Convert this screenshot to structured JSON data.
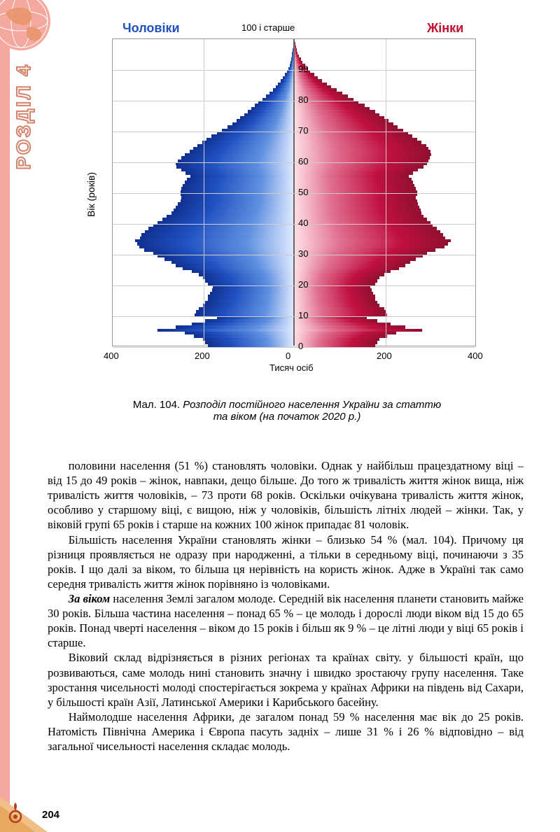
{
  "section_title": "РОЗДІЛ 4",
  "page_number": "204",
  "chart": {
    "type": "population-pyramid",
    "label_male": "Чоловіки",
    "label_female": "Жінки",
    "label_top": "100 і старше",
    "yaxis_label": "Вік (років)",
    "xaxis_label": "Тисяч осіб",
    "colors": {
      "male_gradient": [
        "#e0eaff",
        "#6090e0",
        "#2050c0",
        "#103090"
      ],
      "female_gradient": [
        "#ffe0e5",
        "#e07090",
        "#c01040",
        "#901030"
      ],
      "grid": "#cccccc",
      "border": "#999999"
    },
    "y_ticks": [
      0,
      10,
      20,
      30,
      40,
      50,
      60,
      70,
      80,
      90
    ],
    "x_ticks_left": [
      400,
      200,
      0
    ],
    "x_ticks_right": [
      0,
      200,
      400
    ],
    "xlim": 400,
    "male_values": [
      190,
      195,
      200,
      220,
      240,
      300,
      260,
      225,
      195,
      170,
      218,
      215,
      210,
      200,
      195,
      190,
      190,
      185,
      180,
      178,
      190,
      195,
      200,
      210,
      225,
      245,
      260,
      270,
      285,
      300,
      310,
      330,
      340,
      345,
      350,
      338,
      335,
      328,
      320,
      310,
      300,
      290,
      280,
      270,
      265,
      260,
      255,
      250,
      248,
      250,
      250,
      248,
      245,
      240,
      235,
      228,
      238,
      248,
      258,
      260,
      255,
      248,
      240,
      230,
      222,
      212,
      202,
      192,
      182,
      170,
      158,
      146,
      136,
      126,
      118,
      110,
      102,
      94,
      86,
      78,
      70,
      62,
      54,
      46,
      40,
      35,
      30,
      25,
      20,
      16,
      13,
      10,
      8,
      6,
      5,
      4,
      3,
      2,
      1,
      1
    ],
    "female_values": [
      178,
      183,
      188,
      205,
      225,
      282,
      245,
      212,
      183,
      160,
      205,
      202,
      198,
      188,
      183,
      178,
      178,
      174,
      170,
      168,
      178,
      183,
      188,
      198,
      212,
      230,
      245,
      255,
      268,
      283,
      293,
      311,
      330,
      338,
      345,
      332,
      328,
      322,
      314,
      305,
      300,
      292,
      285,
      280,
      278,
      275,
      273,
      270,
      268,
      270,
      270,
      268,
      265,
      262,
      258,
      252,
      262,
      272,
      285,
      292,
      295,
      298,
      302,
      300,
      295,
      290,
      280,
      270,
      260,
      250,
      240,
      228,
      218,
      208,
      198,
      188,
      178,
      166,
      155,
      142,
      130,
      118,
      106,
      94,
      82,
      72,
      62,
      52,
      44,
      36,
      30,
      24,
      19,
      15,
      11,
      8,
      6,
      4,
      3,
      2
    ]
  },
  "caption_line1": "Мал. 104. Розподіл постійного населення України за статтю",
  "caption_line2": "та віком (на початок 2020 р.)",
  "paragraphs": {
    "p1": "половини населення (51 %) становлять чоловіки. Однак у найбільш працездатному віці – від 15 до 49 років – жінок, навпаки, дещо більше. До того ж тривалість життя жінок вища, ніж тривалість життя чоловіків, – 73 проти 68 років. Оскільки очікувана тривалість життя жінок, особливо у старшому віці, є вищою, ніж у чоловіків, більшість літніх людей – жінки. Так, у віковій групі 65 років і старше на кожних 100 жінок припадає 81 чоловік.",
    "p2": "Більшість населення України становлять жінки – близько 54 % (мал. 104). Причому ця різниця проявляється не одразу при народженні, а тільки в середньому віці, починаючи з 35 років. І що далі за віком, то більша ця нерівність на користь жінок. Адже в Україні так само середня тривалість життя жінок порівняно із чоловіками.",
    "p3_prefix": "За віком",
    "p3_rest": " населення Землі загалом молоде. Середній вік населення планети становить майже 30 років. Більша частина населення – понад 65 % – це молодь і дорослі люди віком від 15 до 65 років. Понад чверті населення – віком до 15 років і більш як 9 % – це літні люди у віці 65 років і старше.",
    "p4": "Віковий склад відрізняється в різних регіонах та країнах світу. у більшості країн, що розвиваються, саме молодь нині становить значну і швидко зростаючу групу населення. Таке зростання чисельності молоді спостерігається зокрема у країнах Африки на південь від Сахари, у більшості країн Азії, Латинської Америки і Карибського басейну.",
    "p5": "Наймолодше населення Африки, де загалом понад 59 % населення має вік до 25 років. Натомість Північна Америка і Європа пасуть задніх – лише 31 % і 26 % відповідно – від загальної чисельності населення складає молодь."
  }
}
